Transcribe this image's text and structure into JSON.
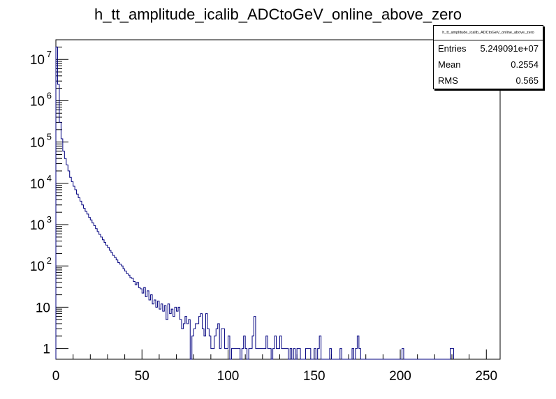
{
  "title": "h_tt_amplitude_icalib_ADCtoGeV_online_above_zero",
  "stats": {
    "name": "h_tt_amplitude_icalib_ADCtoGeV_online_above_zero",
    "rows": [
      {
        "label": "Entries",
        "value": "5.249091e+07"
      },
      {
        "label": "Mean",
        "value": "0.2554"
      },
      {
        "label": "RMS",
        "value": "0.565"
      }
    ]
  },
  "colors": {
    "line": "#00007f",
    "axis": "#000000"
  },
  "chart_data": {
    "type": "histogram",
    "title": "h_tt_amplitude_icalib_ADCtoGeV_online_above_zero",
    "xlabel": "",
    "ylabel": "",
    "xlim": [
      0,
      258
    ],
    "ylim": [
      0.55,
      30000000
    ],
    "yscale": "log",
    "bin_width": 1,
    "x_ticks": [
      0,
      50,
      100,
      150,
      200,
      250
    ],
    "y_ticks": [
      {
        "value": 1,
        "label": "1"
      },
      {
        "value": 10,
        "label": "10"
      },
      {
        "value": 100,
        "label": "10",
        "exp": "2"
      },
      {
        "value": 1000,
        "label": "10",
        "exp": "3"
      },
      {
        "value": 10000,
        "label": "10",
        "exp": "4"
      },
      {
        "value": 100000,
        "label": "10",
        "exp": "5"
      },
      {
        "value": 1000000,
        "label": "10",
        "exp": "6"
      },
      {
        "value": 10000000,
        "label": "10",
        "exp": "7"
      }
    ],
    "bins": [
      [
        0,
        20000000
      ],
      [
        1,
        2500000
      ],
      [
        2,
        300000
      ],
      [
        3,
        120000
      ],
      [
        4,
        60000
      ],
      [
        5,
        40000
      ],
      [
        6,
        28000
      ],
      [
        7,
        20000
      ],
      [
        8,
        14000
      ],
      [
        9,
        11000
      ],
      [
        10,
        8500
      ],
      [
        11,
        7000
      ],
      [
        12,
        5500
      ],
      [
        13,
        4500
      ],
      [
        14,
        3700
      ],
      [
        15,
        3000
      ],
      [
        16,
        2500
      ],
      [
        17,
        2100
      ],
      [
        18,
        1800
      ],
      [
        19,
        1500
      ],
      [
        20,
        1300
      ],
      [
        21,
        1100
      ],
      [
        22,
        950
      ],
      [
        23,
        800
      ],
      [
        24,
        680
      ],
      [
        25,
        580
      ],
      [
        26,
        500
      ],
      [
        27,
        430
      ],
      [
        28,
        370
      ],
      [
        29,
        320
      ],
      [
        30,
        280
      ],
      [
        31,
        240
      ],
      [
        32,
        210
      ],
      [
        33,
        180
      ],
      [
        34,
        160
      ],
      [
        35,
        140
      ],
      [
        36,
        120
      ],
      [
        37,
        110
      ],
      [
        38,
        100
      ],
      [
        39,
        85
      ],
      [
        40,
        75
      ],
      [
        41,
        65
      ],
      [
        42,
        60
      ],
      [
        43,
        52
      ],
      [
        44,
        50
      ],
      [
        45,
        42
      ],
      [
        46,
        35
      ],
      [
        47,
        40
      ],
      [
        48,
        30
      ],
      [
        49,
        28
      ],
      [
        50,
        22
      ],
      [
        51,
        30
      ],
      [
        52,
        18
      ],
      [
        53,
        25
      ],
      [
        54,
        15
      ],
      [
        55,
        20
      ],
      [
        56,
        12
      ],
      [
        57,
        15
      ],
      [
        58,
        10
      ],
      [
        59,
        14
      ],
      [
        60,
        9
      ],
      [
        61,
        12
      ],
      [
        62,
        8
      ],
      [
        63,
        11
      ],
      [
        64,
        5
      ],
      [
        65,
        12
      ],
      [
        66,
        7
      ],
      [
        67,
        9
      ],
      [
        68,
        6
      ],
      [
        69,
        10
      ],
      [
        70,
        8
      ],
      [
        71,
        10
      ],
      [
        72,
        5
      ],
      [
        73,
        3
      ],
      [
        74,
        4
      ],
      [
        75,
        6
      ],
      [
        76,
        4
      ],
      [
        77,
        5
      ],
      [
        78,
        0.001
      ],
      [
        79,
        2
      ],
      [
        80,
        3
      ],
      [
        81,
        4
      ],
      [
        82,
        4
      ],
      [
        83,
        6
      ],
      [
        84,
        7
      ],
      [
        85,
        3
      ],
      [
        86,
        2
      ],
      [
        87,
        7
      ],
      [
        88,
        3
      ],
      [
        89,
        2
      ],
      [
        90,
        1
      ],
      [
        91,
        1
      ],
      [
        92,
        2
      ],
      [
        93,
        3
      ],
      [
        94,
        4
      ],
      [
        95,
        1
      ],
      [
        96,
        3
      ],
      [
        97,
        3
      ],
      [
        98,
        1
      ],
      [
        99,
        1
      ],
      [
        100,
        2
      ],
      [
        102,
        1
      ],
      [
        103,
        1
      ],
      [
        104,
        1
      ],
      [
        105,
        1
      ],
      [
        106,
        1
      ],
      [
        108,
        1
      ],
      [
        109,
        2
      ],
      [
        110,
        1
      ],
      [
        112,
        1
      ],
      [
        113,
        1
      ],
      [
        114,
        2
      ],
      [
        115,
        6
      ],
      [
        116,
        1
      ],
      [
        117,
        1
      ],
      [
        118,
        1
      ],
      [
        119,
        1
      ],
      [
        120,
        1
      ],
      [
        121,
        1
      ],
      [
        122,
        2
      ],
      [
        123,
        1
      ],
      [
        124,
        1
      ],
      [
        126,
        1
      ],
      [
        127,
        2
      ],
      [
        128,
        1
      ],
      [
        129,
        1
      ],
      [
        130,
        2
      ],
      [
        131,
        1
      ],
      [
        132,
        1
      ],
      [
        133,
        1
      ],
      [
        134,
        1
      ],
      [
        136,
        1
      ],
      [
        138,
        1
      ],
      [
        140,
        1
      ],
      [
        141,
        1
      ],
      [
        145,
        1
      ],
      [
        146,
        1
      ],
      [
        147,
        1
      ],
      [
        150,
        1
      ],
      [
        152,
        1
      ],
      [
        153,
        2
      ],
      [
        159,
        1
      ],
      [
        165,
        1
      ],
      [
        172,
        1
      ],
      [
        174,
        1
      ],
      [
        175,
        2
      ],
      [
        176,
        1
      ],
      [
        201,
        1
      ],
      [
        229,
        1
      ],
      [
        230,
        1
      ]
    ]
  }
}
